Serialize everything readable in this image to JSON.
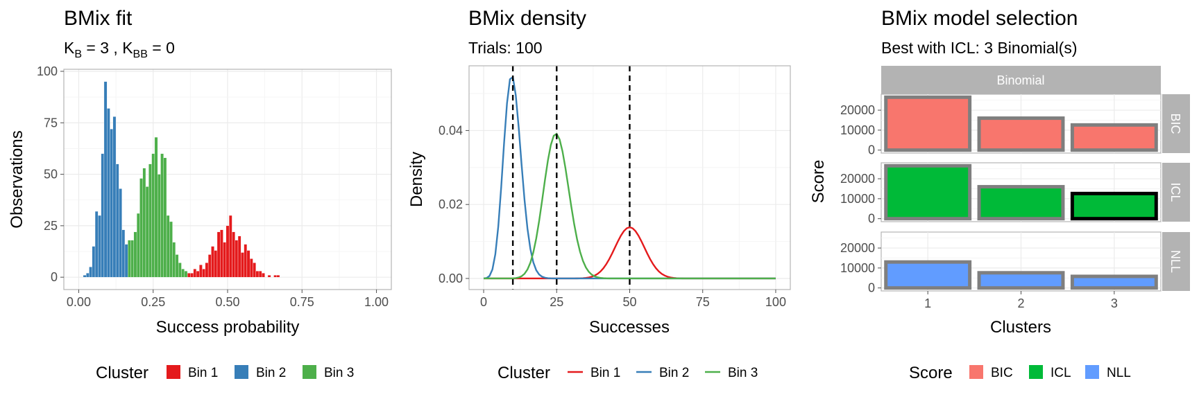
{
  "palette": {
    "bin1": "#E41A1C",
    "bin2": "#377EB8",
    "bin3": "#4DAF4A",
    "BIC": "#F8766D",
    "ICL": "#00BA38",
    "NLL": "#619CFF"
  },
  "chart_data": [
    {
      "type": "bar",
      "title": "BMix fit",
      "subtitle": {
        "k_symbol": "K",
        "sub_b": "B",
        "eq_b": " = 3 , ",
        "sub_bb": "BB",
        "eq_bb": " = 0"
      },
      "xlabel": "Success probability",
      "ylabel": "Observations",
      "xlim": [
        -0.05,
        1.05
      ],
      "ylim": [
        -6,
        101
      ],
      "x_ticks": [
        0,
        0.25,
        0.5,
        0.75,
        1
      ],
      "x_tick_labels": [
        "0.00",
        "0.25",
        "0.50",
        "0.75",
        "1.00"
      ],
      "y_ticks": [
        0,
        25,
        50,
        75,
        100
      ],
      "y_tick_labels": [
        "0",
        "25",
        "50",
        "75",
        "100"
      ],
      "legend_title": "Cluster",
      "series": [
        {
          "name": "Bin 1",
          "color_key": "bin1",
          "x": [
            0.37,
            0.38,
            0.39,
            0.4,
            0.41,
            0.42,
            0.43,
            0.44,
            0.45,
            0.46,
            0.47,
            0.48,
            0.49,
            0.5,
            0.51,
            0.52,
            0.53,
            0.54,
            0.55,
            0.56,
            0.57,
            0.58,
            0.59,
            0.6,
            0.61,
            0.62,
            0.64,
            0.66,
            0.67
          ],
          "values": [
            2,
            2,
            4,
            3,
            6,
            4,
            7,
            11,
            15,
            13,
            22,
            23,
            17,
            25,
            30,
            22,
            18,
            20,
            12,
            16,
            13,
            9,
            7,
            3,
            3,
            2,
            1,
            1,
            1
          ]
        },
        {
          "name": "Bin 2",
          "color_key": "bin2",
          "x": [
            0.02,
            0.03,
            0.04,
            0.05,
            0.06,
            0.07,
            0.08,
            0.09,
            0.1,
            0.11,
            0.12,
            0.13,
            0.14,
            0.15,
            0.16
          ],
          "values": [
            1,
            2,
            5,
            15,
            32,
            30,
            60,
            95,
            82,
            72,
            78,
            55,
            43,
            23,
            16
          ]
        },
        {
          "name": "Bin 3",
          "color_key": "bin3",
          "x": [
            0.17,
            0.18,
            0.19,
            0.2,
            0.21,
            0.22,
            0.23,
            0.24,
            0.25,
            0.26,
            0.27,
            0.28,
            0.29,
            0.3,
            0.31,
            0.32,
            0.33,
            0.34,
            0.35,
            0.36
          ],
          "values": [
            18,
            18,
            22,
            31,
            48,
            53,
            44,
            55,
            60,
            68,
            50,
            60,
            58,
            30,
            27,
            17,
            11,
            7,
            4,
            3
          ]
        }
      ]
    },
    {
      "type": "line",
      "title": "BMix density",
      "subtitle": "Trials: 100",
      "xlabel": "Successes",
      "ylabel": "Density",
      "xlim": [
        -5,
        105
      ],
      "ylim": [
        -0.003,
        0.0575
      ],
      "x_ticks": [
        0,
        25,
        50,
        75,
        100
      ],
      "x_tick_labels": [
        "0",
        "25",
        "50",
        "75",
        "100"
      ],
      "y_ticks": [
        0,
        0.02,
        0.04
      ],
      "y_tick_labels": [
        "0.00",
        "0.02",
        "0.04"
      ],
      "vlines": [
        10,
        25,
        50
      ],
      "legend_title": "Cluster",
      "series": [
        {
          "name": "Bin 1",
          "color_key": "bin1",
          "trials": 100,
          "p": 0.5,
          "weight": 0.174
        },
        {
          "name": "Bin 2",
          "color_key": "bin2",
          "trials": 100,
          "p": 0.1,
          "weight": 0.413
        },
        {
          "name": "Bin 3",
          "color_key": "bin3",
          "trials": 100,
          "p": 0.25,
          "weight": 0.426
        }
      ]
    },
    {
      "type": "bar",
      "title": "BMix model selection",
      "subtitle": "Best with ICL: 3 Binomial(s)",
      "xlabel": "Clusters",
      "ylabel": "Score",
      "strip_top": "Binomial",
      "categories": [
        "1",
        "2",
        "3"
      ],
      "ylim": [
        -1500,
        28000
      ],
      "y_ticks": [
        0,
        10000,
        20000
      ],
      "y_tick_labels": [
        "0",
        "10000",
        "20000"
      ],
      "best": {
        "panel": "ICL",
        "category": "3"
      },
      "legend_title": "Score",
      "panels": [
        {
          "name": "BIC",
          "color_key": "BIC",
          "values": [
            26500,
            16000,
            12600
          ]
        },
        {
          "name": "ICL",
          "color_key": "ICL",
          "values": [
            26500,
            16000,
            12600
          ]
        },
        {
          "name": "NLL",
          "color_key": "NLL",
          "values": [
            13000,
            7600,
            5800
          ]
        }
      ]
    }
  ]
}
